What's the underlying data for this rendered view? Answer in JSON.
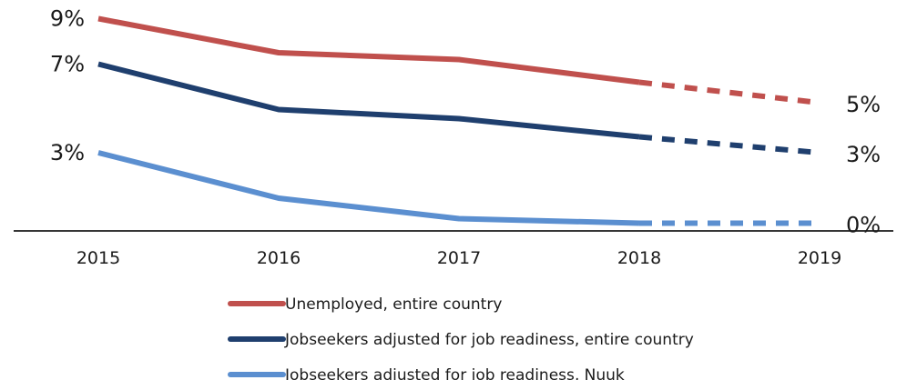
{
  "chart_data": {
    "type": "line",
    "title": "",
    "xlabel": "",
    "ylabel": "",
    "categories": [
      "2015",
      "2016",
      "2017",
      "2018",
      "2019"
    ],
    "ylim": [
      0,
      10
    ],
    "grid": false,
    "legend_placement": "bottom",
    "projection_from": "2018",
    "series": [
      {
        "name": "Unemployed, entire country",
        "color": "#c0504d",
        "values": [
          9.1,
          7.6,
          7.3,
          6.3,
          5.4
        ],
        "start_label": "9%",
        "end_label": "5%"
      },
      {
        "name": "Jobseekers adjusted for job readiness, entire country",
        "color": "#1f3f6e",
        "values": [
          7.1,
          5.1,
          4.7,
          3.9,
          3.2
        ],
        "start_label": "7%",
        "end_label": "3%"
      },
      {
        "name": "Jobseekers adjusted for job readiness, Nuuk",
        "color": "#5b8fd0",
        "values": [
          3.2,
          1.2,
          0.3,
          0.1,
          0.1
        ],
        "start_label": "3%",
        "end_label": "0%"
      }
    ]
  }
}
